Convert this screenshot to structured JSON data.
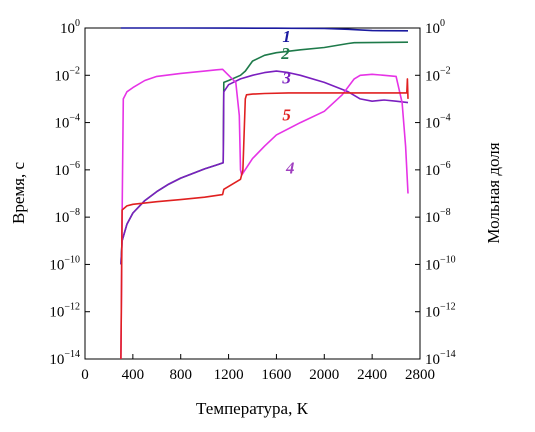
{
  "chart_data": {
    "type": "line",
    "xlabel": "Температура, К",
    "ylabel_left": "Время, с",
    "ylabel_right": "Мольная доля",
    "xlim": [
      0,
      2800
    ],
    "x_ticks": [
      0,
      400,
      800,
      1200,
      1600,
      2000,
      2400,
      2800
    ],
    "x_tick_labels": [
      "0",
      "400",
      "800",
      "1200",
      "1600",
      "2000",
      "2400",
      "2800"
    ],
    "ylim_log10": [
      -14,
      0
    ],
    "y_scale": "log",
    "y_ticks_exp": [
      0,
      -2,
      -4,
      -6,
      -8,
      -10,
      -12,
      -14
    ],
    "y_tick_base": "10",
    "y_tick_exponents": [
      "0",
      "−2",
      "−4",
      "−6",
      "−8",
      "−10",
      "−12",
      "−14"
    ],
    "grid": false,
    "series": [
      {
        "name": "1",
        "color": "#1a1aa0",
        "x": [
          300,
          800,
          1200,
          1600,
          2000,
          2200,
          2400,
          2700
        ],
        "y": [
          1.0,
          1.0,
          0.99,
          0.98,
          0.95,
          0.88,
          0.78,
          0.76
        ]
      },
      {
        "name": "2",
        "color": "#1e7a4a",
        "x": [
          300,
          310,
          350,
          400,
          500,
          600,
          700,
          800,
          900,
          1000,
          1100,
          1155,
          1160,
          1200,
          1300,
          1340,
          1400,
          1500,
          1600,
          1800,
          2000,
          2200,
          2250,
          2700
        ],
        "y": [
          1e-10,
          1e-09,
          5e-09,
          1.5e-08,
          5e-08,
          1.2e-07,
          2.5e-07,
          4.5e-07,
          7e-07,
          1.1e-06,
          1.6e-06,
          2e-06,
          0.005,
          0.006,
          0.01,
          0.015,
          0.04,
          0.07,
          0.09,
          0.12,
          0.15,
          0.22,
          0.24,
          0.25
        ]
      },
      {
        "name": "3",
        "color": "#7a1fbf",
        "x": [
          300,
          310,
          350,
          400,
          500,
          600,
          700,
          800,
          900,
          1000,
          1100,
          1155,
          1160,
          1200,
          1300,
          1400,
          1500,
          1600,
          1700,
          1800,
          2000,
          2200,
          2300,
          2400,
          2500,
          2600,
          2700
        ],
        "y": [
          1e-10,
          1e-09,
          5e-09,
          1.5e-08,
          5e-08,
          1.2e-07,
          2.5e-07,
          4.5e-07,
          7e-07,
          1.1e-06,
          1.6e-06,
          2e-06,
          0.002,
          0.004,
          0.007,
          0.01,
          0.013,
          0.015,
          0.013,
          0.01,
          0.005,
          0.002,
          0.001,
          0.0008,
          0.0009,
          0.0008,
          0.0007
        ]
      },
      {
        "name": "4",
        "color": "#e633e6",
        "x": [
          300,
          310,
          320,
          350,
          400,
          500,
          600,
          800,
          1000,
          1100,
          1150,
          1200,
          1260,
          1290,
          1300,
          1310,
          1400,
          1500,
          1600,
          1800,
          2000,
          2150,
          2250,
          2300,
          2400,
          2500,
          2600,
          2650,
          2680,
          2700
        ],
        "y": [
          1e-14,
          1e-08,
          0.001,
          0.002,
          0.003,
          0.006,
          0.009,
          0.012,
          0.015,
          0.017,
          0.018,
          0.01,
          0.005,
          0.0002,
          1e-06,
          6e-07,
          3e-06,
          1e-05,
          3e-05,
          0.0001,
          0.0003,
          0.0015,
          0.007,
          0.01,
          0.011,
          0.01,
          0.009,
          0.0007,
          1e-05,
          1e-07
        ]
      },
      {
        "name": "5",
        "color": "#e02020",
        "x": [
          300,
          305,
          310,
          350,
          400,
          600,
          800,
          1000,
          1150,
          1160,
          1200,
          1300,
          1320,
          1340,
          1350,
          1400,
          1500,
          1700,
          2000,
          2300,
          2600,
          2690,
          2695,
          2700
        ],
        "y": [
          1e-14,
          1e-11,
          2e-08,
          3e-08,
          3.5e-08,
          4.5e-08,
          5.5e-08,
          7e-08,
          9e-08,
          1.5e-07,
          2e-07,
          4e-07,
          1e-06,
          0.001,
          0.0015,
          0.0016,
          0.0017,
          0.0018,
          0.0018,
          0.0018,
          0.0018,
          0.0018,
          0.007,
          0.001
        ]
      }
    ],
    "curve_labels": [
      {
        "text": "1",
        "color": "#1a1aa0",
        "x": 1650,
        "y": 0.25
      },
      {
        "text": "2",
        "color": "#1e7a4a",
        "x": 1640,
        "y": 0.05
      },
      {
        "text": "3",
        "color": "#7a1fbf",
        "x": 1650,
        "y": 0.0045
      },
      {
        "text": "5",
        "color": "#e02020",
        "x": 1650,
        "y": 0.00012
      },
      {
        "text": "4",
        "color": "#a040c0",
        "x": 1680,
        "y": 7e-07
      }
    ]
  }
}
